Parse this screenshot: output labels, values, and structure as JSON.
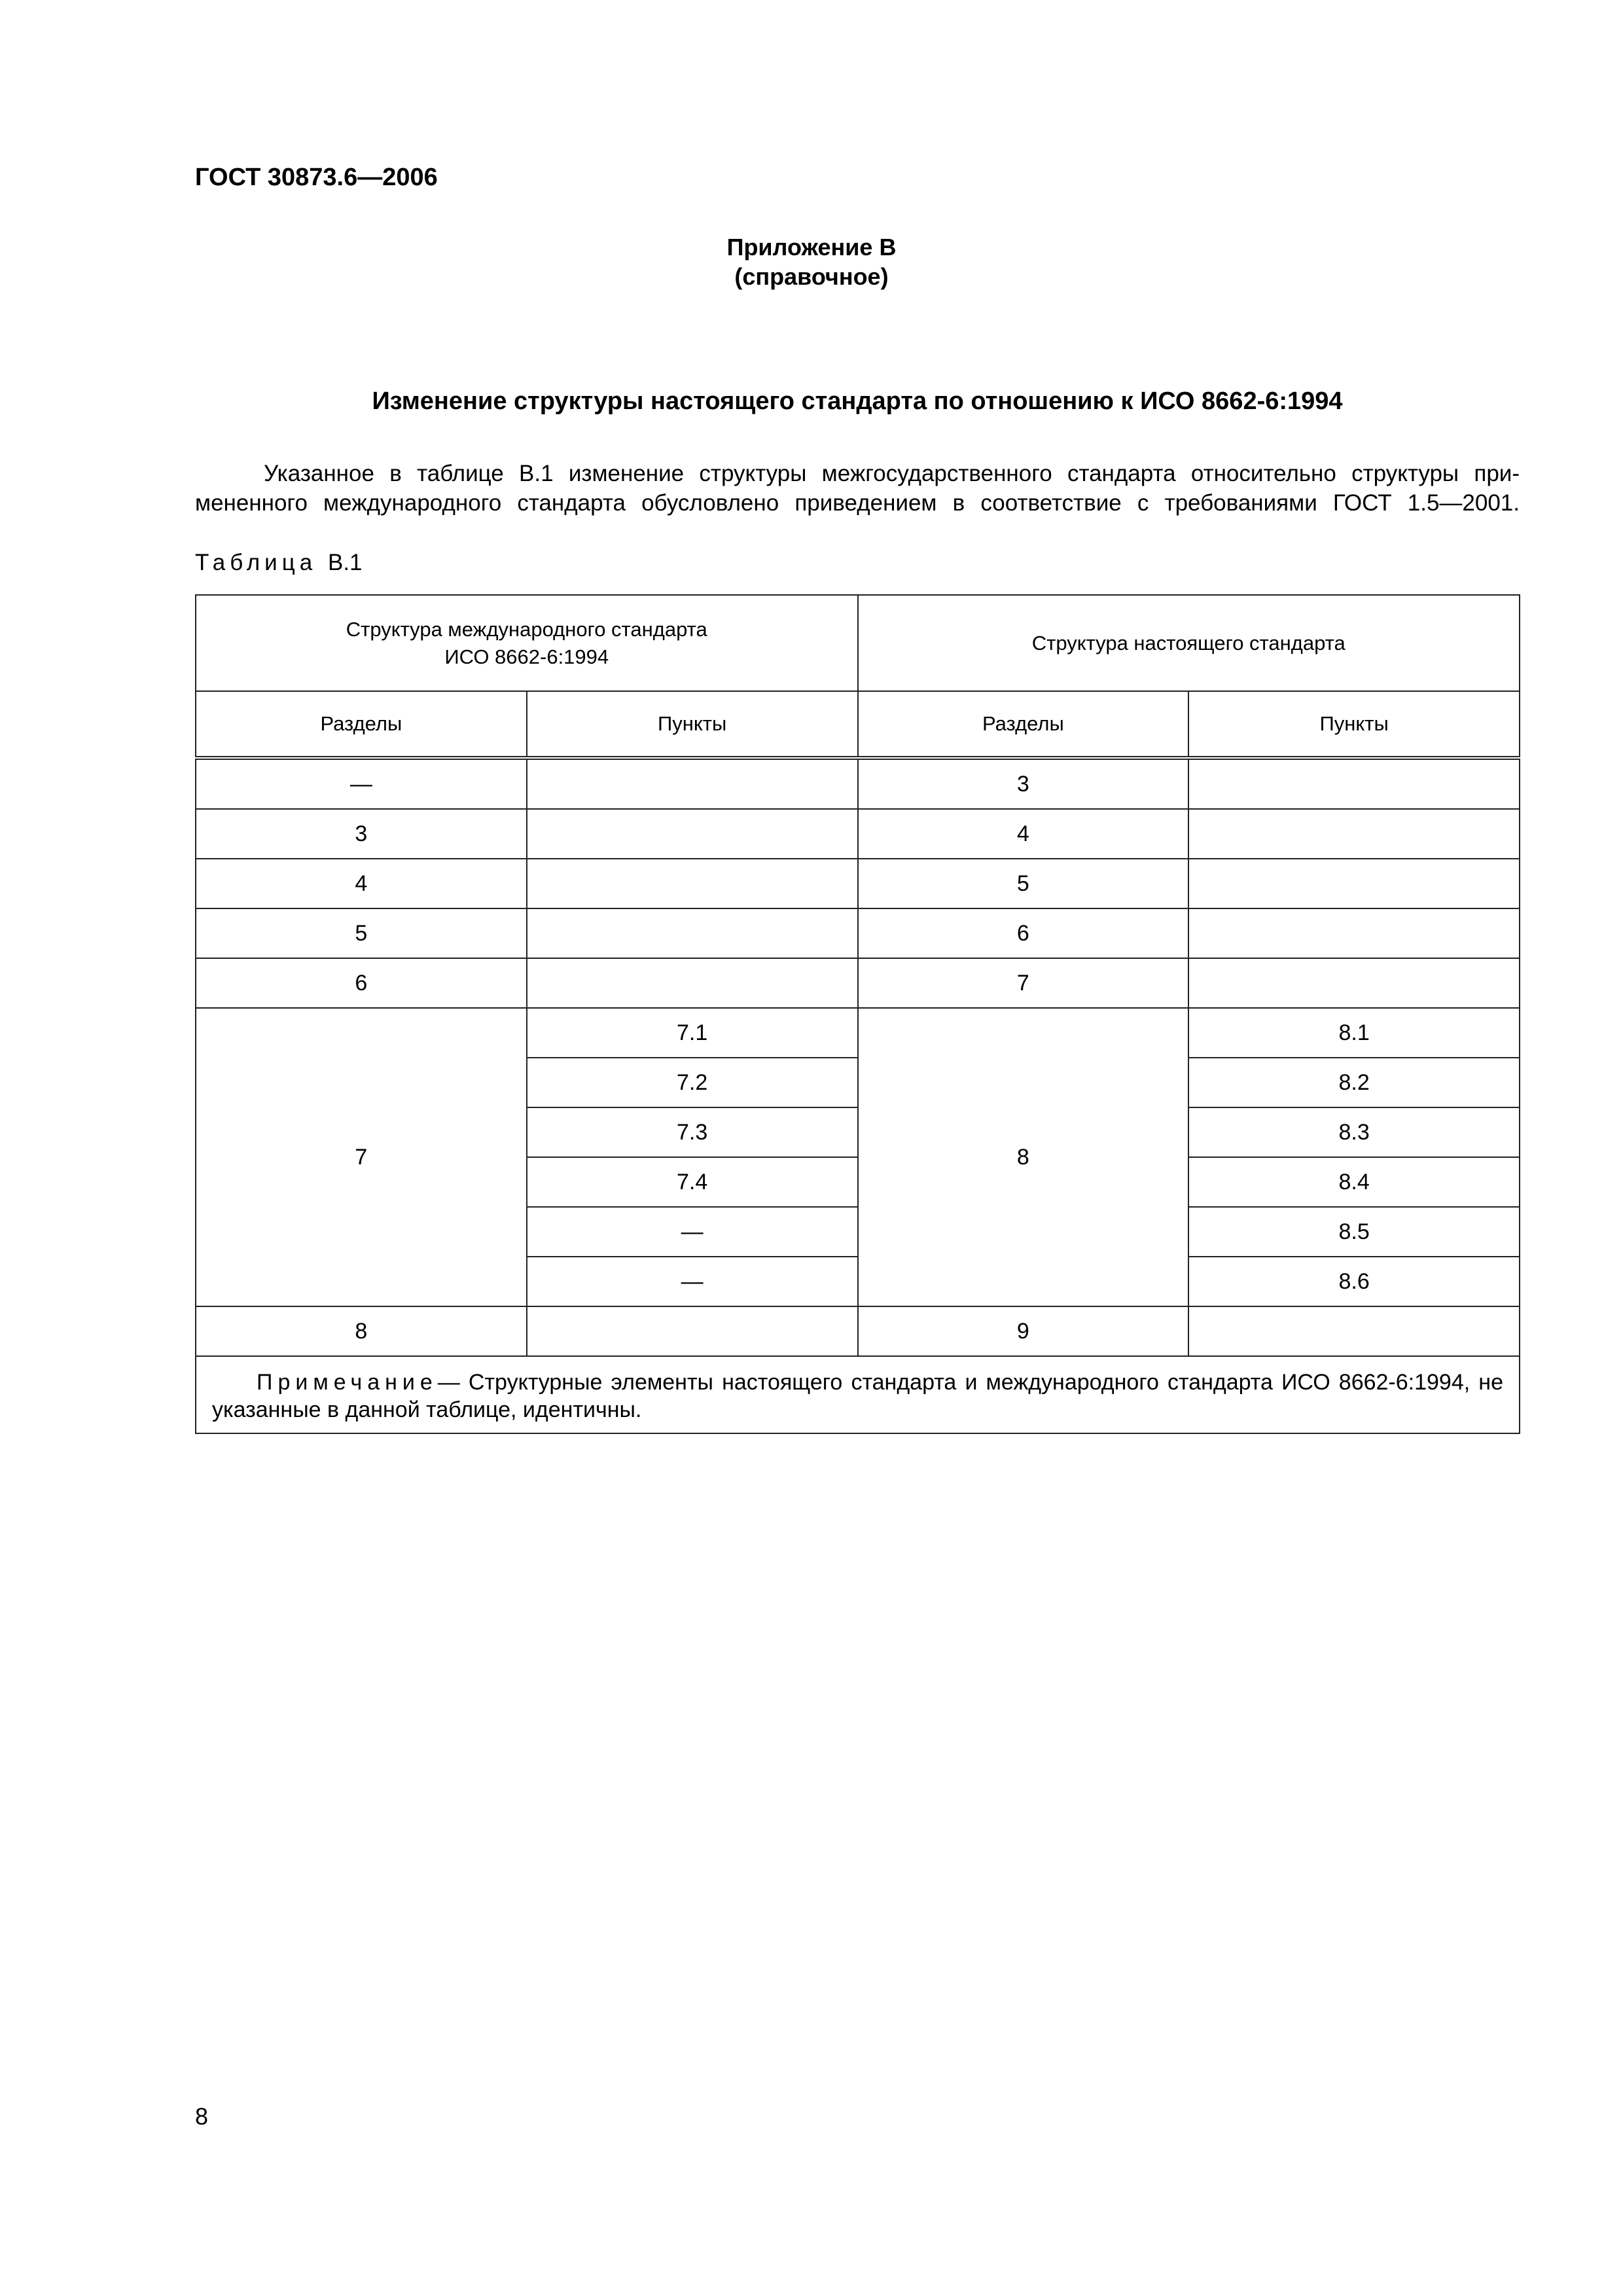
{
  "header": {
    "doc_code": "ГОСТ 30873.6—2006"
  },
  "appendix": {
    "label": "Приложение В",
    "type": "(справочное)"
  },
  "title": "Изменение структуры настоящего стандарта по отношению к ИСО 8662-6:1994",
  "paragraph": {
    "line1": "Указанное в таблице В.1 изменение структуры межгосударственного стандарта относительно структуры при-",
    "line2": "мененного международного стандарта обусловлено приведением в соответствие с требованиями ГОСТ 1.5—2001."
  },
  "table": {
    "caption_word": "Таблица",
    "caption_num": "В.1",
    "header": {
      "iso_group_line1": "Структура международного стандарта",
      "iso_group_line2": "ИСО 8662-6:1994",
      "std_group": "Структура настоящего стандарта",
      "sections": "Разделы",
      "clauses": "Пункты"
    },
    "rows": [
      {
        "iso_section": "—",
        "iso_clause": "",
        "std_section": "3",
        "std_clause": ""
      },
      {
        "iso_section": "3",
        "iso_clause": "",
        "std_section": "4",
        "std_clause": ""
      },
      {
        "iso_section": "4",
        "iso_clause": "",
        "std_section": "5",
        "std_clause": ""
      },
      {
        "iso_section": "5",
        "iso_clause": "",
        "std_section": "6",
        "std_clause": ""
      },
      {
        "iso_section": "6",
        "iso_clause": "",
        "std_section": "7",
        "std_clause": ""
      }
    ],
    "group": {
      "iso_section": "7",
      "iso_clauses": [
        "7.1",
        "7.2",
        "7.3",
        "7.4",
        "—",
        "—"
      ],
      "std_section": "8",
      "std_clauses": [
        "8.1",
        "8.2",
        "8.3",
        "8.4",
        "8.5",
        "8.6"
      ]
    },
    "last_row": {
      "iso_section": "8",
      "iso_clause": "",
      "std_section": "9",
      "std_clause": ""
    },
    "note_label": "Примечание",
    "note_text": "— Структурные элементы настоящего стандарта и международного стандарта ИСО 8662-6:1994, не указанные в данной таблице, идентичны."
  },
  "footer": {
    "page_number": "8"
  }
}
